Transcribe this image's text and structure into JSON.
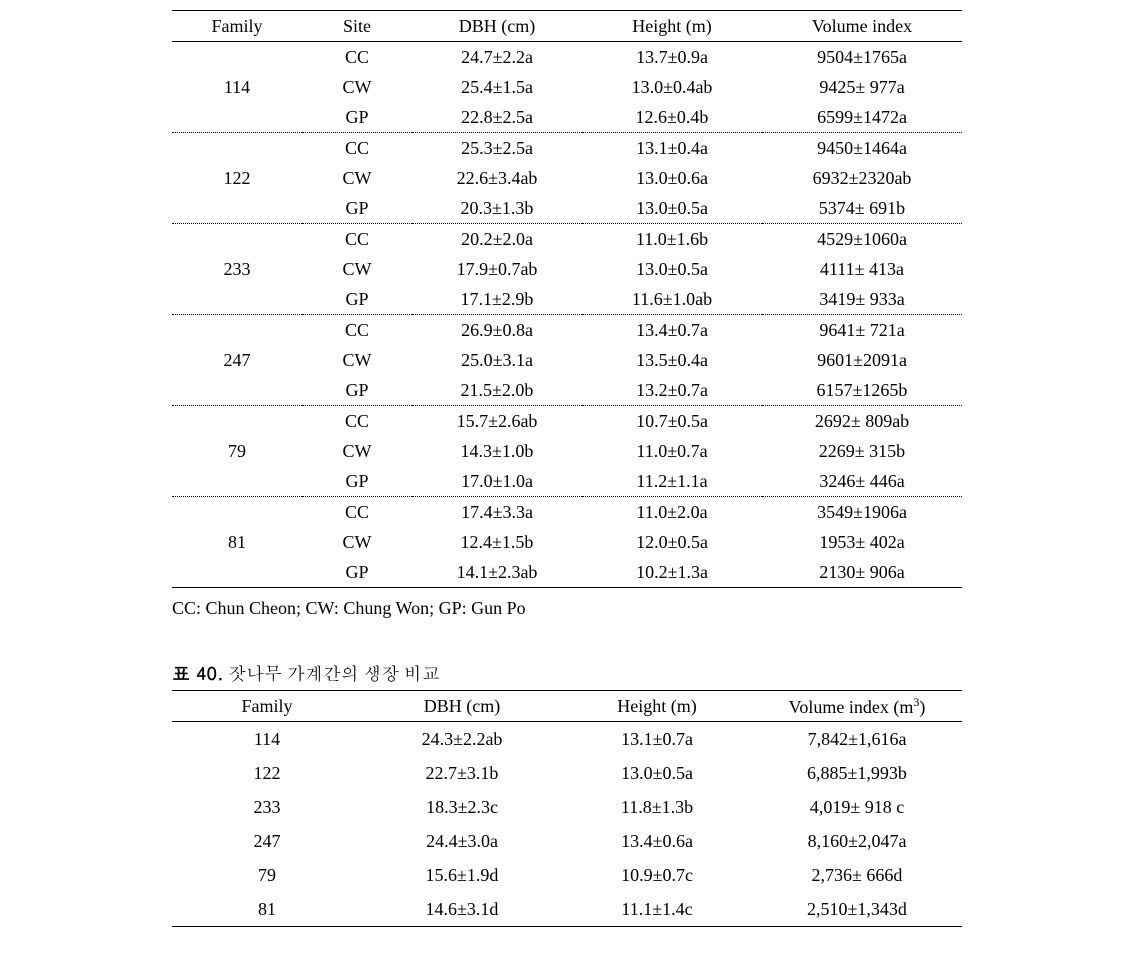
{
  "table1": {
    "headers": {
      "family": "Family",
      "site": "Site",
      "dbh": "DBH (cm)",
      "height": "Height (m)",
      "volume": "Volume index"
    },
    "groups": [
      {
        "family": "114",
        "rows": [
          {
            "site": "CC",
            "dbh": "24.7±2.2a",
            "height": "13.7±0.9a",
            "volume": "9504±1765a"
          },
          {
            "site": "CW",
            "dbh": "25.4±1.5a",
            "height": "13.0±0.4ab",
            "volume": "9425± 977a"
          },
          {
            "site": "GP",
            "dbh": "22.8±2.5a",
            "height": "12.6±0.4b",
            "volume": "6599±1472a"
          }
        ]
      },
      {
        "family": "122",
        "rows": [
          {
            "site": "CC",
            "dbh": "25.3±2.5a",
            "height": "13.1±0.4a",
            "volume": "9450±1464a"
          },
          {
            "site": "CW",
            "dbh": "22.6±3.4ab",
            "height": "13.0±0.6a",
            "volume": "6932±2320ab"
          },
          {
            "site": "GP",
            "dbh": "20.3±1.3b",
            "height": "13.0±0.5a",
            "volume": "5374± 691b"
          }
        ]
      },
      {
        "family": "233",
        "rows": [
          {
            "site": "CC",
            "dbh": "20.2±2.0a",
            "height": "11.0±1.6b",
            "volume": "4529±1060a"
          },
          {
            "site": "CW",
            "dbh": "17.9±0.7ab",
            "height": "13.0±0.5a",
            "volume": "4111± 413a"
          },
          {
            "site": "GP",
            "dbh": "17.1±2.9b",
            "height": "11.6±1.0ab",
            "volume": "3419± 933a"
          }
        ]
      },
      {
        "family": "247",
        "rows": [
          {
            "site": "CC",
            "dbh": "26.9±0.8a",
            "height": "13.4±0.7a",
            "volume": "9641± 721a"
          },
          {
            "site": "CW",
            "dbh": "25.0±3.1a",
            "height": "13.5±0.4a",
            "volume": "9601±2091a"
          },
          {
            "site": "GP",
            "dbh": "21.5±2.0b",
            "height": "13.2±0.7a",
            "volume": "6157±1265b"
          }
        ]
      },
      {
        "family": "79",
        "rows": [
          {
            "site": "CC",
            "dbh": "15.7±2.6ab",
            "height": "10.7±0.5a",
            "volume": "2692± 809ab"
          },
          {
            "site": "CW",
            "dbh": "14.3±1.0b",
            "height": "11.0±0.7a",
            "volume": "2269± 315b"
          },
          {
            "site": "GP",
            "dbh": "17.0±1.0a",
            "height": "11.2±1.1a",
            "volume": "3246± 446a"
          }
        ]
      },
      {
        "family": "81",
        "rows": [
          {
            "site": "CC",
            "dbh": "17.4±3.3a",
            "height": "11.0±2.0a",
            "volume": "3549±1906a"
          },
          {
            "site": "CW",
            "dbh": "12.4±1.5b",
            "height": "12.0±0.5a",
            "volume": "1953± 402a"
          },
          {
            "site": "GP",
            "dbh": "14.1±2.3ab",
            "height": "10.2±1.3a",
            "volume": "2130± 906a"
          }
        ]
      }
    ]
  },
  "footnote": "CC: Chun Cheon; CW: Chung Won; GP: Gun Po",
  "caption2": {
    "label": "표 40.",
    "text": "잣나무 가계간의 생장 비교"
  },
  "table2": {
    "headers": {
      "family": "Family",
      "dbh": "DBH (cm)",
      "height": "Height (m)",
      "volume_prefix": "Volume index (m",
      "volume_sup": "3",
      "volume_suffix": ")"
    },
    "rows": [
      {
        "family": "114",
        "dbh": "24.3±2.2ab",
        "height": "13.1±0.7a",
        "volume": "7,842±1,616a"
      },
      {
        "family": "122",
        "dbh": "22.7±3.1b",
        "height": "13.0±0.5a",
        "volume": "6,885±1,993b"
      },
      {
        "family": "233",
        "dbh": "18.3±2.3c",
        "height": "11.8±1.3b",
        "volume": "4,019± 918 c"
      },
      {
        "family": "247",
        "dbh": "24.4±3.0a",
        "height": "13.4±0.6a",
        "volume": "8,160±2,047a"
      },
      {
        "family": "79",
        "dbh": "15.6±1.9d",
        "height": "10.9±0.7c",
        "volume": "2,736±  666d"
      },
      {
        "family": "81",
        "dbh": "14.6±3.1d",
        "height": "11.1±1.4c",
        "volume": "2,510±1,343d"
      }
    ]
  }
}
